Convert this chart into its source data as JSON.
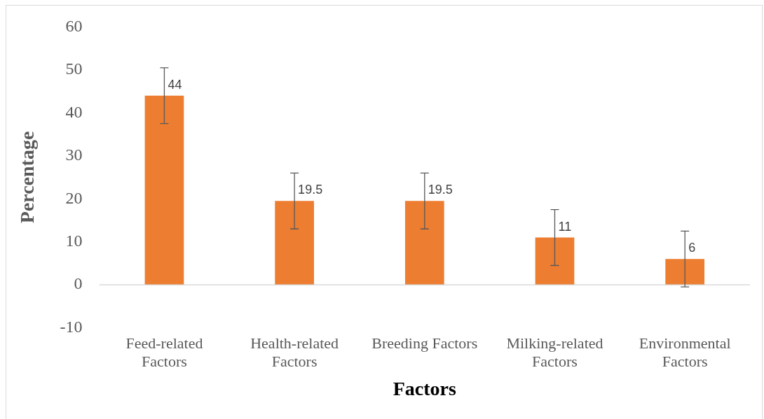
{
  "chart_data": {
    "type": "bar",
    "xlabel": "Factors",
    "ylabel": "Percentage",
    "categories": [
      "Feed-related Factors",
      "Health-related Factors",
      "Breeding Factors",
      "Milking-related Factors",
      "Environmental Factors"
    ],
    "values": [
      44,
      19.5,
      19.5,
      11,
      6
    ],
    "color": "#ed7d31",
    "errors": [
      6.5,
      6.5,
      6.5,
      6.5,
      6.5
    ],
    "ylim": [
      -10,
      60
    ],
    "yticks": [
      -10,
      0,
      10,
      20,
      30,
      40,
      50,
      60
    ],
    "ref_lines": [
      {
        "axis": "y",
        "value": 0,
        "color": "#d9d9d9"
      }
    ],
    "data_labels": true,
    "grid": false,
    "legend": false
  }
}
